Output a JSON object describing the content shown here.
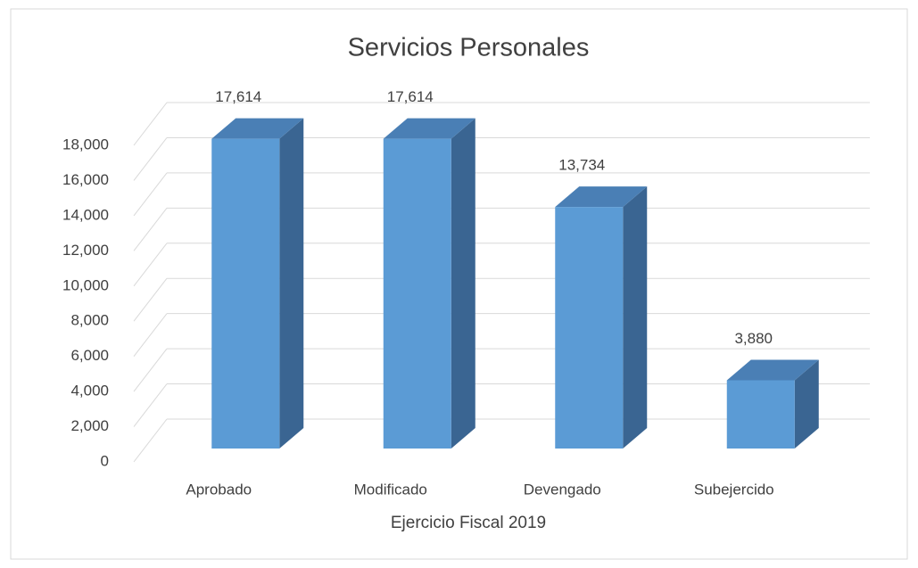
{
  "chart_data": {
    "type": "bar3d",
    "title": "Servicios Personales",
    "x_label": "Ejercicio Fiscal 2019",
    "categories": [
      "Aprobado",
      "Modificado",
      "Devengado",
      "Subejercido"
    ],
    "values": [
      17614,
      17614,
      13734,
      3880
    ],
    "value_labels": [
      "17,614",
      "17,614",
      "13,734",
      "3,880"
    ],
    "color": "#5b9bd5",
    "ylim": [
      0,
      18000
    ],
    "yticks": [
      0,
      {
        "value": 2000,
        "label": "2,000"
      },
      {
        "value": 4000,
        "label": "4,000"
      },
      {
        "value": 6000,
        "label": "6,000"
      },
      {
        "value": 8000,
        "label": "8,000"
      },
      {
        "value": 10000,
        "label": "10,000"
      },
      {
        "value": 12000,
        "label": "12,000"
      },
      {
        "value": 14000,
        "label": "14,000"
      },
      {
        "value": 16000,
        "label": "16,000"
      },
      {
        "value": 18000,
        "label": "18,000"
      }
    ],
    "grid": true
  }
}
